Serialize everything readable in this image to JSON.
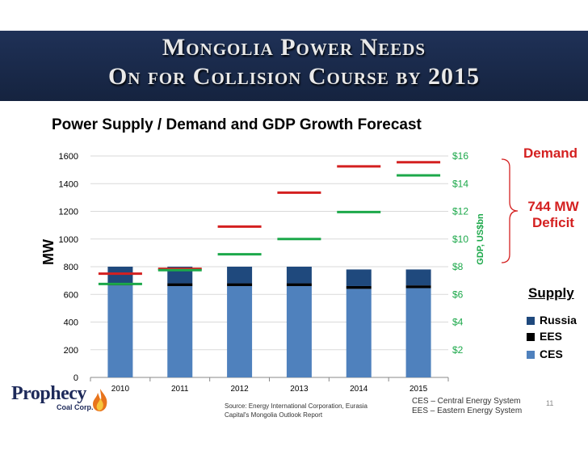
{
  "slide": {
    "title_line1": "Mongolia Power Needs",
    "title_line2": "On for Collision Course by 2015",
    "page_number": "11"
  },
  "chart_data": {
    "type": "bar",
    "title": "Power Supply / Demand and GDP Growth Forecast",
    "ylabel": "MW",
    "y2label": "GDP, US$bn",
    "ylim": [
      0,
      1600
    ],
    "yticks": [
      "0",
      "200",
      "400",
      "600",
      "800",
      "1000",
      "1200",
      "1400",
      "1600"
    ],
    "y2lim": [
      0,
      16
    ],
    "y2ticks": [
      "$2",
      "$4",
      "$6",
      "$8",
      "$10",
      "$12",
      "$14",
      "$16"
    ],
    "categories": [
      "2010",
      "2011",
      "2012",
      "2013",
      "2014",
      "2015"
    ],
    "series": [
      {
        "name": "CES",
        "color": "#4f81bd",
        "values": [
          665,
          660,
          660,
          660,
          640,
          645
        ]
      },
      {
        "name": "EES",
        "color": "#000000",
        "values": [
          15,
          20,
          20,
          20,
          20,
          20
        ]
      },
      {
        "name": "Russia",
        "color": "#1f497d",
        "values": [
          120,
          120,
          120,
          120,
          120,
          115
        ]
      }
    ],
    "demand": {
      "name": "Demand",
      "color": "#d42020",
      "values": [
        750,
        785,
        1090,
        1335,
        1525,
        1555
      ]
    },
    "gdp": {
      "name": "GDP",
      "color": "#1ca84a",
      "values": [
        6.75,
        7.75,
        8.9,
        10.0,
        11.95,
        14.6
      ]
    }
  },
  "annotations": {
    "demand_label": "Demand",
    "deficit_line1": "744 MW",
    "deficit_line2": "Deficit",
    "supply_title": "Supply",
    "legend": [
      {
        "label": "Russia",
        "color": "#1f497d"
      },
      {
        "label": "EES",
        "color": "#000000"
      },
      {
        "label": "CES",
        "color": "#4f81bd"
      }
    ]
  },
  "footer": {
    "logo_name": "Prophecy",
    "logo_sub": "Coal Corp.",
    "source_text": "Source: Energy International Corporation, Eurasia Capital's Mongolia Outlook Report",
    "abbr_ces": "CES – Central Energy System",
    "abbr_ees": "EES – Eastern Energy System"
  }
}
